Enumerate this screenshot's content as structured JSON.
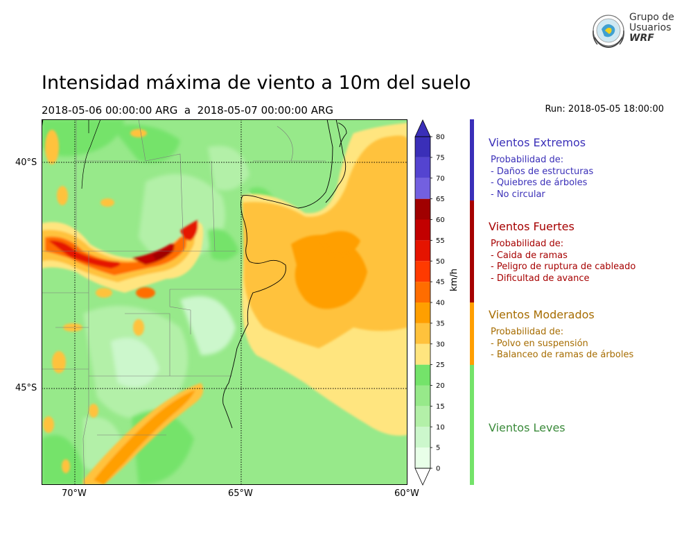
{
  "title": "Intensidad máxima de viento a 10m del suelo",
  "subtitle": "2018-05-06 00:00:00 ARG  a  2018-05-07 00:00:00 ARG",
  "run": "Run: 2018-05-05 18:00:00",
  "logo": {
    "line1": "Grupo de",
    "line2": "Usuarios",
    "line3": "WRF"
  },
  "axes": {
    "lat_ticks": [
      "40°S",
      "45°S"
    ],
    "lon_ticks": [
      "70°W",
      "65°W",
      "60°W"
    ],
    "lon_range": [
      -71,
      -60
    ],
    "lat_range": [
      -48.7,
      -38.9
    ]
  },
  "colorbar": {
    "unit": "km/h",
    "levels": [
      "0",
      "5",
      "10",
      "15",
      "20",
      "25",
      "30",
      "35",
      "40",
      "45",
      "50",
      "55",
      "60",
      "65",
      "70",
      "75",
      "80"
    ],
    "colors": [
      "#e8ffe8",
      "#ccf7cc",
      "#b3f0a8",
      "#97e98a",
      "#74e36a",
      "#ffe57f",
      "#ffc23c",
      "#ff9f00",
      "#ff6d00",
      "#ff3a00",
      "#e51400",
      "#c20000",
      "#a00000",
      "#7360e0",
      "#5444d0",
      "#3a2fb8"
    ]
  },
  "categories": [
    {
      "name": "Vientos Extremos",
      "color": "#3a2fb8",
      "desc": "Probabilidad de:\n- Daños de estructuras\n- Quiebres de árboles\n- No circular"
    },
    {
      "name": "Vientos Fuertes",
      "color": "#a60000",
      "desc": "Probabilidad de:\n- Caida de ramas\n- Peligro de ruptura de cableado\n- Dificultad de avance"
    },
    {
      "name": "Vientos Moderados",
      "color": "#a66c00",
      "desc": "Probabilidad de:\n- Polvo en suspensión\n- Balanceo de ramas de árboles"
    },
    {
      "name": "Vientos Leves",
      "color": "#3a8a3a",
      "desc": ""
    }
  ],
  "legend_bar_colors": [
    "#3a2fb8",
    "#a60000",
    "#ff9f00",
    "#74e36a"
  ]
}
